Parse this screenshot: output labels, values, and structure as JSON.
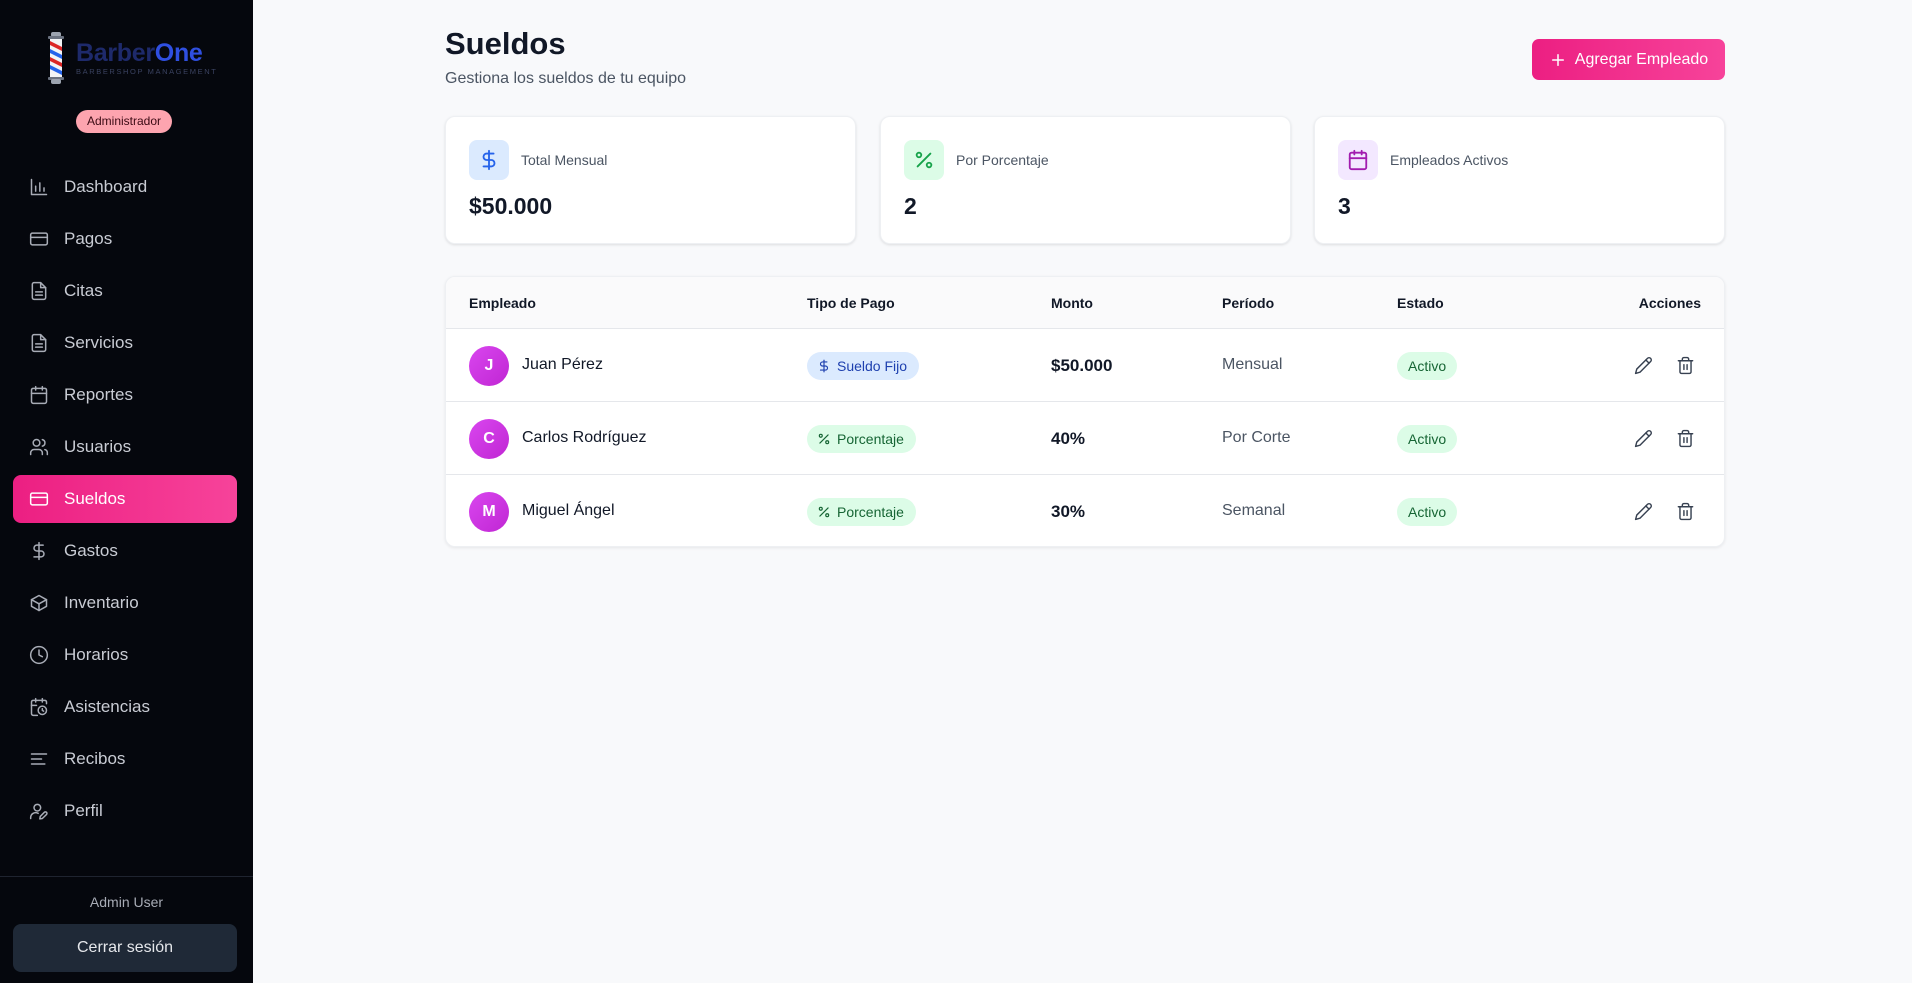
{
  "brand": {
    "name_part1": "Barber",
    "name_part2": "One",
    "tagline": "BARBERSHOP MANAGEMENT"
  },
  "role": "Administrador",
  "nav": [
    {
      "label": "Dashboard",
      "icon": "bar-chart-icon"
    },
    {
      "label": "Pagos",
      "icon": "credit-card-icon"
    },
    {
      "label": "Citas",
      "icon": "document-icon"
    },
    {
      "label": "Servicios",
      "icon": "document-icon"
    },
    {
      "label": "Reportes",
      "icon": "calendar-icon"
    },
    {
      "label": "Usuarios",
      "icon": "users-icon"
    },
    {
      "label": "Sueldos",
      "icon": "credit-card-icon",
      "active": true
    },
    {
      "label": "Gastos",
      "icon": "dollar-icon"
    },
    {
      "label": "Inventario",
      "icon": "box-icon"
    },
    {
      "label": "Horarios",
      "icon": "clock-icon"
    },
    {
      "label": "Asistencias",
      "icon": "calendar-clock-icon"
    },
    {
      "label": "Recibos",
      "icon": "lines-icon"
    },
    {
      "label": "Perfil",
      "icon": "user-edit-icon"
    }
  ],
  "user": {
    "name": "Admin User",
    "logout_label": "Cerrar sesión"
  },
  "header": {
    "title": "Sueldos",
    "subtitle": "Gestiona los sueldos de tu equipo",
    "add_label": "Agregar Empleado"
  },
  "stats": [
    {
      "label": "Total Mensual",
      "value": "$50.000",
      "icon": "dollar-icon",
      "color": "#2563eb"
    },
    {
      "label": "Por Porcentaje",
      "value": "2",
      "icon": "percent-icon",
      "color": "#16a34a"
    },
    {
      "label": "Empleados Activos",
      "value": "3",
      "icon": "calendar-icon",
      "color": "#a21caf"
    }
  ],
  "table": {
    "columns": [
      "Empleado",
      "Tipo de Pago",
      "Monto",
      "Período",
      "Estado",
      "Acciones"
    ],
    "rows": [
      {
        "initial": "J",
        "name": "Juan Pérez",
        "type": "Sueldo Fijo",
        "amount": "$50.000",
        "period": "Mensual",
        "status": "Activo"
      },
      {
        "initial": "C",
        "name": "Carlos Rodríguez",
        "type": "Porcentaje",
        "amount": "40%",
        "period": "Por Corte",
        "status": "Activo"
      },
      {
        "initial": "M",
        "name": "Miguel Ángel",
        "type": "Porcentaje",
        "amount": "30%",
        "period": "Semanal",
        "status": "Activo"
      }
    ]
  }
}
